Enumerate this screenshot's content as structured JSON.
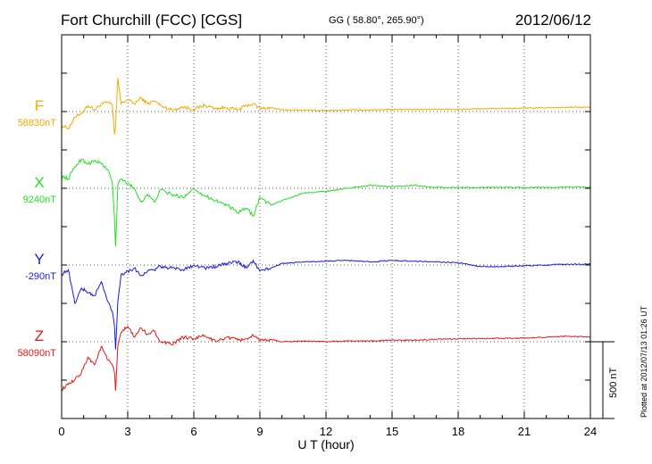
{
  "header": {
    "station": "Fort Churchill (FCC)  [CGS]",
    "coords": "GG ( 58.80°, 265.90°)",
    "date": "2012/06/12"
  },
  "footer_note": "Plotted at 2012/07/13 01:26 UT",
  "chart_data": {
    "type": "line",
    "title": "Fort Churchill (FCC)  [CGS]",
    "xlabel": "U T (hour)",
    "ylabel": "",
    "xlim": [
      0,
      24
    ],
    "xticks": [
      "0",
      "3",
      "6",
      "9",
      "12",
      "15",
      "18",
      "21",
      "24"
    ],
    "grid": true,
    "scale_bar": {
      "label": "500 nT",
      "value_nT": 500
    },
    "series": [
      {
        "name": "F",
        "baseline_label": "58830nT",
        "baseline_nT": 58830,
        "color": "#f5a800",
        "x": [
          0,
          0.3,
          0.6,
          0.9,
          1.2,
          1.5,
          1.8,
          2.1,
          2.3,
          2.4,
          2.45,
          2.55,
          2.7,
          3.0,
          3.3,
          3.6,
          3.9,
          4.2,
          4.5,
          5.0,
          5.5,
          6.0,
          6.5,
          7.0,
          7.5,
          8.0,
          8.4,
          8.7,
          9.0,
          9.5,
          10,
          11,
          12,
          13,
          14,
          15,
          16,
          17,
          18,
          19,
          20,
          21,
          22,
          23,
          24
        ],
        "values": [
          -90,
          -110,
          -40,
          -10,
          40,
          10,
          50,
          60,
          40,
          -150,
          -100,
          220,
          50,
          80,
          50,
          90,
          50,
          70,
          40,
          10,
          30,
          15,
          40,
          20,
          25,
          10,
          40,
          50,
          20,
          25,
          10,
          10,
          5,
          10,
          10,
          15,
          12,
          15,
          15,
          18,
          20,
          22,
          25,
          28,
          28
        ]
      },
      {
        "name": "X",
        "baseline_label": "9240nT",
        "baseline_nT": 9240,
        "color": "#22dd22",
        "x": [
          0,
          0.3,
          0.6,
          0.9,
          1.2,
          1.5,
          1.8,
          2.1,
          2.3,
          2.4,
          2.45,
          2.55,
          2.7,
          3.0,
          3.3,
          3.6,
          3.9,
          4.2,
          4.5,
          5.0,
          5.5,
          6.0,
          6.5,
          7.0,
          7.5,
          8.0,
          8.4,
          8.7,
          9.0,
          9.5,
          10,
          11,
          12,
          13,
          14,
          15,
          16,
          17,
          18,
          19,
          20,
          21,
          22,
          23,
          24
        ],
        "values": [
          80,
          60,
          140,
          190,
          160,
          180,
          160,
          120,
          40,
          -200,
          -380,
          20,
          60,
          30,
          0,
          -90,
          -40,
          -90,
          -10,
          -40,
          -60,
          0,
          -50,
          -80,
          -110,
          -160,
          -130,
          -180,
          -60,
          -110,
          -80,
          -30,
          -20,
          0,
          20,
          10,
          20,
          5,
          5,
          5,
          5,
          5,
          5,
          8,
          8
        ]
      },
      {
        "name": "Y",
        "baseline_label": "-290nT",
        "baseline_nT": -290,
        "color": "#1a1adf",
        "x": [
          0,
          0.3,
          0.6,
          0.9,
          1.2,
          1.5,
          1.8,
          2.1,
          2.3,
          2.4,
          2.45,
          2.55,
          2.7,
          3.0,
          3.3,
          3.6,
          3.9,
          4.2,
          4.5,
          5.0,
          5.5,
          6.0,
          6.5,
          7.0,
          7.5,
          8.0,
          8.4,
          8.7,
          9.0,
          9.5,
          10,
          11,
          12,
          13,
          14,
          15,
          16,
          17,
          18,
          19,
          20,
          21,
          22,
          23,
          24
        ],
        "values": [
          -60,
          -30,
          -250,
          -150,
          -180,
          -200,
          -110,
          -240,
          -300,
          -400,
          -550,
          -240,
          -60,
          -40,
          -20,
          -70,
          -40,
          -30,
          -10,
          -20,
          -30,
          0,
          -20,
          -10,
          10,
          20,
          -20,
          30,
          -40,
          -20,
          10,
          20,
          25,
          30,
          20,
          30,
          25,
          20,
          15,
          -10,
          -10,
          -5,
          0,
          5,
          5
        ]
      },
      {
        "name": "Z",
        "baseline_label": "58090nT",
        "baseline_nT": 58090,
        "color": "#e01818",
        "x": [
          0,
          0.3,
          0.6,
          0.9,
          1.2,
          1.5,
          1.8,
          2.1,
          2.3,
          2.4,
          2.45,
          2.55,
          2.7,
          3.0,
          3.3,
          3.6,
          3.9,
          4.2,
          4.5,
          5.0,
          5.5,
          6.0,
          6.5,
          7.0,
          7.5,
          8.0,
          8.4,
          8.7,
          9.0,
          9.5,
          10,
          11,
          12,
          13,
          14,
          15,
          16,
          17,
          18,
          19,
          20,
          21,
          22,
          23,
          24
        ],
        "values": [
          -310,
          -280,
          -250,
          -200,
          -100,
          -150,
          -30,
          -120,
          -150,
          -200,
          -320,
          -30,
          60,
          100,
          30,
          90,
          50,
          70,
          0,
          -20,
          30,
          20,
          40,
          0,
          30,
          10,
          20,
          40,
          5,
          15,
          0,
          5,
          0,
          5,
          5,
          10,
          10,
          15,
          20,
          20,
          22,
          25,
          30,
          35,
          30
        ]
      }
    ]
  }
}
